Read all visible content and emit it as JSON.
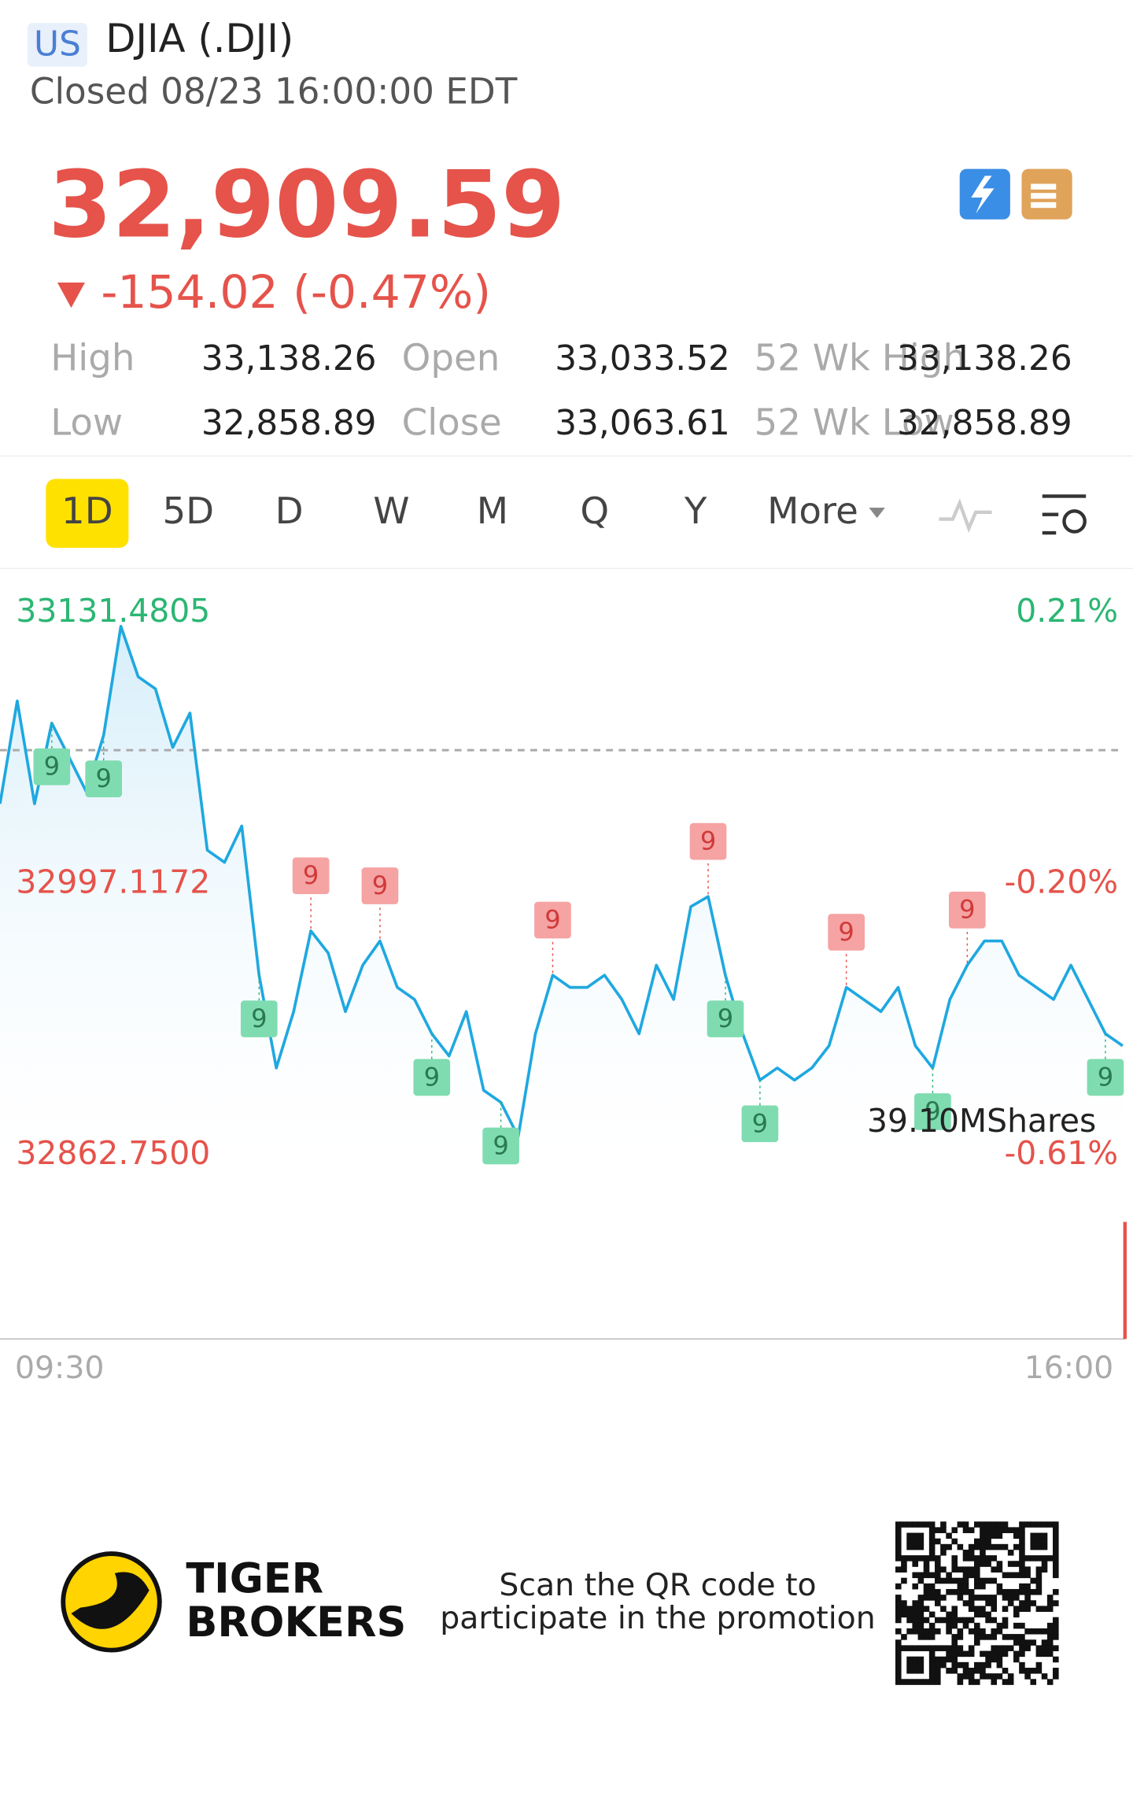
{
  "quote": {
    "market": "US",
    "name": "DJIA (.DJI)",
    "status": "Closed 08/23 16:00:00 EDT",
    "price": "32,909.59",
    "change": "-154.02 (-0.47%)",
    "stats": [
      [
        {
          "label": "High",
          "value": "33,138.26"
        },
        {
          "label": "Open",
          "value": "33,033.52"
        },
        {
          "label": "52 Wk High",
          "value": "33,138.26"
        }
      ],
      [
        {
          "label": "Low",
          "value": "32,858.89"
        },
        {
          "label": "Close",
          "value": "33,063.61"
        },
        {
          "label": "52 Wk Low",
          "value": "32,858.89"
        }
      ]
    ]
  },
  "tabs": {
    "items": [
      "1D",
      "5D",
      "D",
      "W",
      "M",
      "Q",
      "Y",
      "More"
    ],
    "active": 0
  },
  "chart_data": {
    "type": "line",
    "x": [
      0,
      6,
      12,
      18,
      24,
      30,
      36,
      42,
      48,
      54,
      60,
      66,
      72,
      78,
      84,
      90,
      96,
      102,
      108,
      114,
      120,
      126,
      132,
      138,
      144,
      150,
      156,
      162,
      168,
      174,
      180,
      186,
      192,
      198,
      204,
      210,
      216,
      222,
      228,
      234,
      240,
      246,
      252,
      258,
      264,
      270,
      276,
      282,
      288,
      294,
      300,
      306,
      312,
      318,
      324,
      330,
      336,
      342,
      348,
      354,
      360,
      366,
      372,
      378,
      384,
      390
    ],
    "values": [
      33037,
      33088,
      33037,
      33077,
      33060,
      33043,
      33071,
      33125,
      33100,
      33094,
      33065,
      33082,
      33014,
      33008,
      33026,
      32952,
      32906,
      32934,
      32974,
      32963,
      32934,
      32957,
      32969,
      32946,
      32940,
      32923,
      32912,
      32934,
      32895,
      32889,
      32872,
      32923,
      32952,
      32946,
      32946,
      32952,
      32940,
      32923,
      32957,
      32940,
      32986,
      32991,
      32952,
      32923,
      32900,
      32906,
      32900,
      32906,
      32917,
      32946,
      32940,
      32934,
      32946,
      32917,
      32906,
      32940,
      32957,
      32969,
      32969,
      32952,
      32946,
      32940,
      32957,
      32940,
      32923,
      32917
    ],
    "color": "#1fa8e0",
    "reference": 33063.61,
    "xlim": [
      0,
      390
    ],
    "xticks": [
      {
        "value": 0,
        "label": "09:30"
      },
      {
        "value": 390,
        "label": "16:00"
      }
    ],
    "ylim": [
      32862.75,
      33131.4805
    ],
    "yticks": [
      33131.4805,
      32997.1172,
      {
        "value": 32862.75,
        "label": "32862.7500"
      }
    ],
    "y2lim": [
      -0.61,
      0.21
    ],
    "y2ticks": [
      {
        "value": 0.21,
        "label": "0.21%"
      },
      {
        "value": -0.2,
        "label": "-0.20%"
      },
      {
        "value": -0.61,
        "label": "-0.61%"
      }
    ],
    "up_color": "#2bb673",
    "down_color": "#e5534b",
    "volume_label": "39.10MShares",
    "signals": [
      {
        "x": 18,
        "label": "9",
        "color": "#7fdcb0"
      },
      {
        "x": 36,
        "label": "9",
        "color": "#7fdcb0"
      },
      {
        "x": 90,
        "label": "9",
        "color": "#7fdcb0"
      },
      {
        "x": 108,
        "label": "9",
        "color": "#f5a3a3"
      },
      {
        "x": 132,
        "label": "9",
        "color": "#f5a3a3"
      },
      {
        "x": 150,
        "label": "9",
        "color": "#7fdcb0"
      },
      {
        "x": 174,
        "label": "9",
        "color": "#7fdcb0"
      },
      {
        "x": 192,
        "label": "9",
        "color": "#f5a3a3"
      },
      {
        "x": 246,
        "label": "9",
        "color": "#f5a3a3"
      },
      {
        "x": 252,
        "label": "9",
        "color": "#7fdcb0"
      },
      {
        "x": 264,
        "label": "9",
        "color": "#7fdcb0"
      },
      {
        "x": 294,
        "label": "9",
        "color": "#f5a3a3"
      },
      {
        "x": 324,
        "label": "9",
        "color": "#7fdcb0"
      },
      {
        "x": 336,
        "label": "9",
        "color": "#f5a3a3"
      },
      {
        "x": 384,
        "label": "9",
        "color": "#7fdcb0"
      }
    ]
  },
  "footer": {
    "brand_lines": [
      "TIGER",
      "BROKERS"
    ],
    "promo_lines": [
      "Scan the QR code to",
      "participate in the promotion"
    ]
  }
}
